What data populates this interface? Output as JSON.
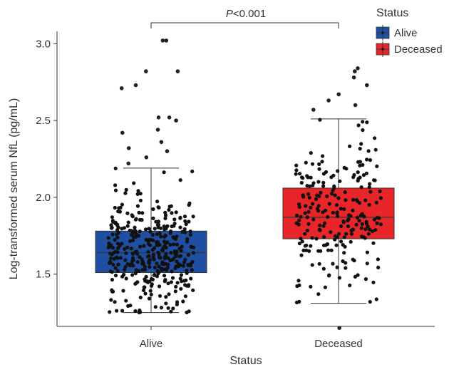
{
  "chart_data": {
    "type": "boxplot",
    "xlabel": "Status",
    "ylabel": "Log-transformed serum NfL (pg/mL)",
    "ylim": [
      1.16,
      3.08
    ],
    "yticks": [
      "1.5",
      "2.0",
      "2.5",
      "3.0"
    ],
    "categories": [
      "Alive",
      "Deceased"
    ],
    "series": [
      {
        "name": "Alive",
        "color": "#1f4fa3",
        "whisker_low": 1.25,
        "q1": 1.51,
        "median": 1.64,
        "q3": 1.78,
        "whisker_high": 2.19,
        "outliers": [
          2.22,
          2.26,
          2.3,
          2.32,
          2.36,
          2.42,
          2.44,
          2.5,
          2.52,
          2.52,
          2.71,
          2.73,
          2.82,
          2.82,
          3.02,
          3.02
        ],
        "points_count": 380
      },
      {
        "name": "Deceased",
        "color": "#e8262a",
        "whisker_low": 1.31,
        "q1": 1.73,
        "median": 1.87,
        "q3": 2.06,
        "whisker_high": 2.51,
        "outliers": [
          2.57,
          2.6,
          2.63,
          2.67,
          2.73,
          2.78,
          2.82,
          2.84,
          1.15
        ],
        "points_count": 230
      }
    ],
    "annotation": {
      "prefix": "P",
      "text": "<0.001"
    },
    "legend": {
      "title": "Status",
      "position": "top-right"
    },
    "grid": false
  }
}
